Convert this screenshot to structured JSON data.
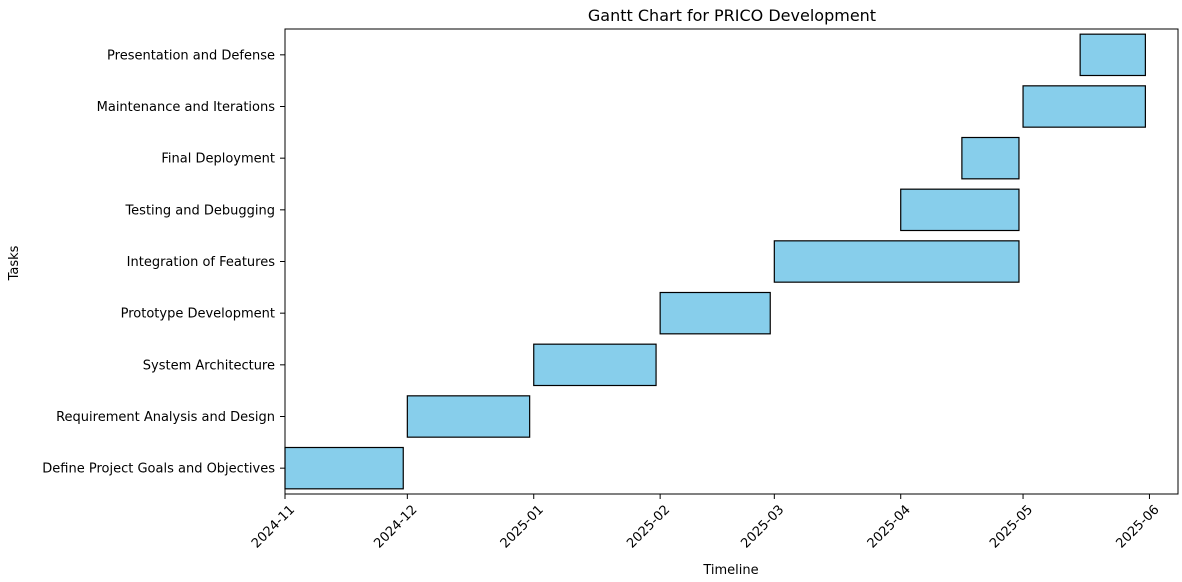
{
  "chart_data": {
    "type": "gantt",
    "title": "Gantt Chart for PRICO Development",
    "xlabel": "Timeline",
    "ylabel": "Tasks",
    "xlim": [
      "2024-11-01",
      "2025-06-08"
    ],
    "x_ticks": [
      "2024-11",
      "2024-12",
      "2025-01",
      "2025-02",
      "2025-03",
      "2025-04",
      "2025-05",
      "2025-06"
    ],
    "bar_color": "#87CEEB",
    "edge_color": "#000000",
    "grid": false,
    "tasks": [
      {
        "name": "Define Project Goals and Objectives",
        "start": "2024-11-01",
        "end": "2024-11-30"
      },
      {
        "name": "Requirement Analysis and Design",
        "start": "2024-12-01",
        "end": "2024-12-31"
      },
      {
        "name": "System Architecture",
        "start": "2025-01-01",
        "end": "2025-01-31"
      },
      {
        "name": "Prototype Development",
        "start": "2025-02-01",
        "end": "2025-02-28"
      },
      {
        "name": "Integration of Features",
        "start": "2025-03-01",
        "end": "2025-04-30"
      },
      {
        "name": "Testing and Debugging",
        "start": "2025-04-01",
        "end": "2025-04-30"
      },
      {
        "name": "Final Deployment",
        "start": "2025-04-16",
        "end": "2025-04-30"
      },
      {
        "name": "Maintenance and Iterations",
        "start": "2025-05-01",
        "end": "2025-05-31"
      },
      {
        "name": "Presentation and Defense",
        "start": "2025-05-15",
        "end": "2025-05-31"
      }
    ]
  }
}
